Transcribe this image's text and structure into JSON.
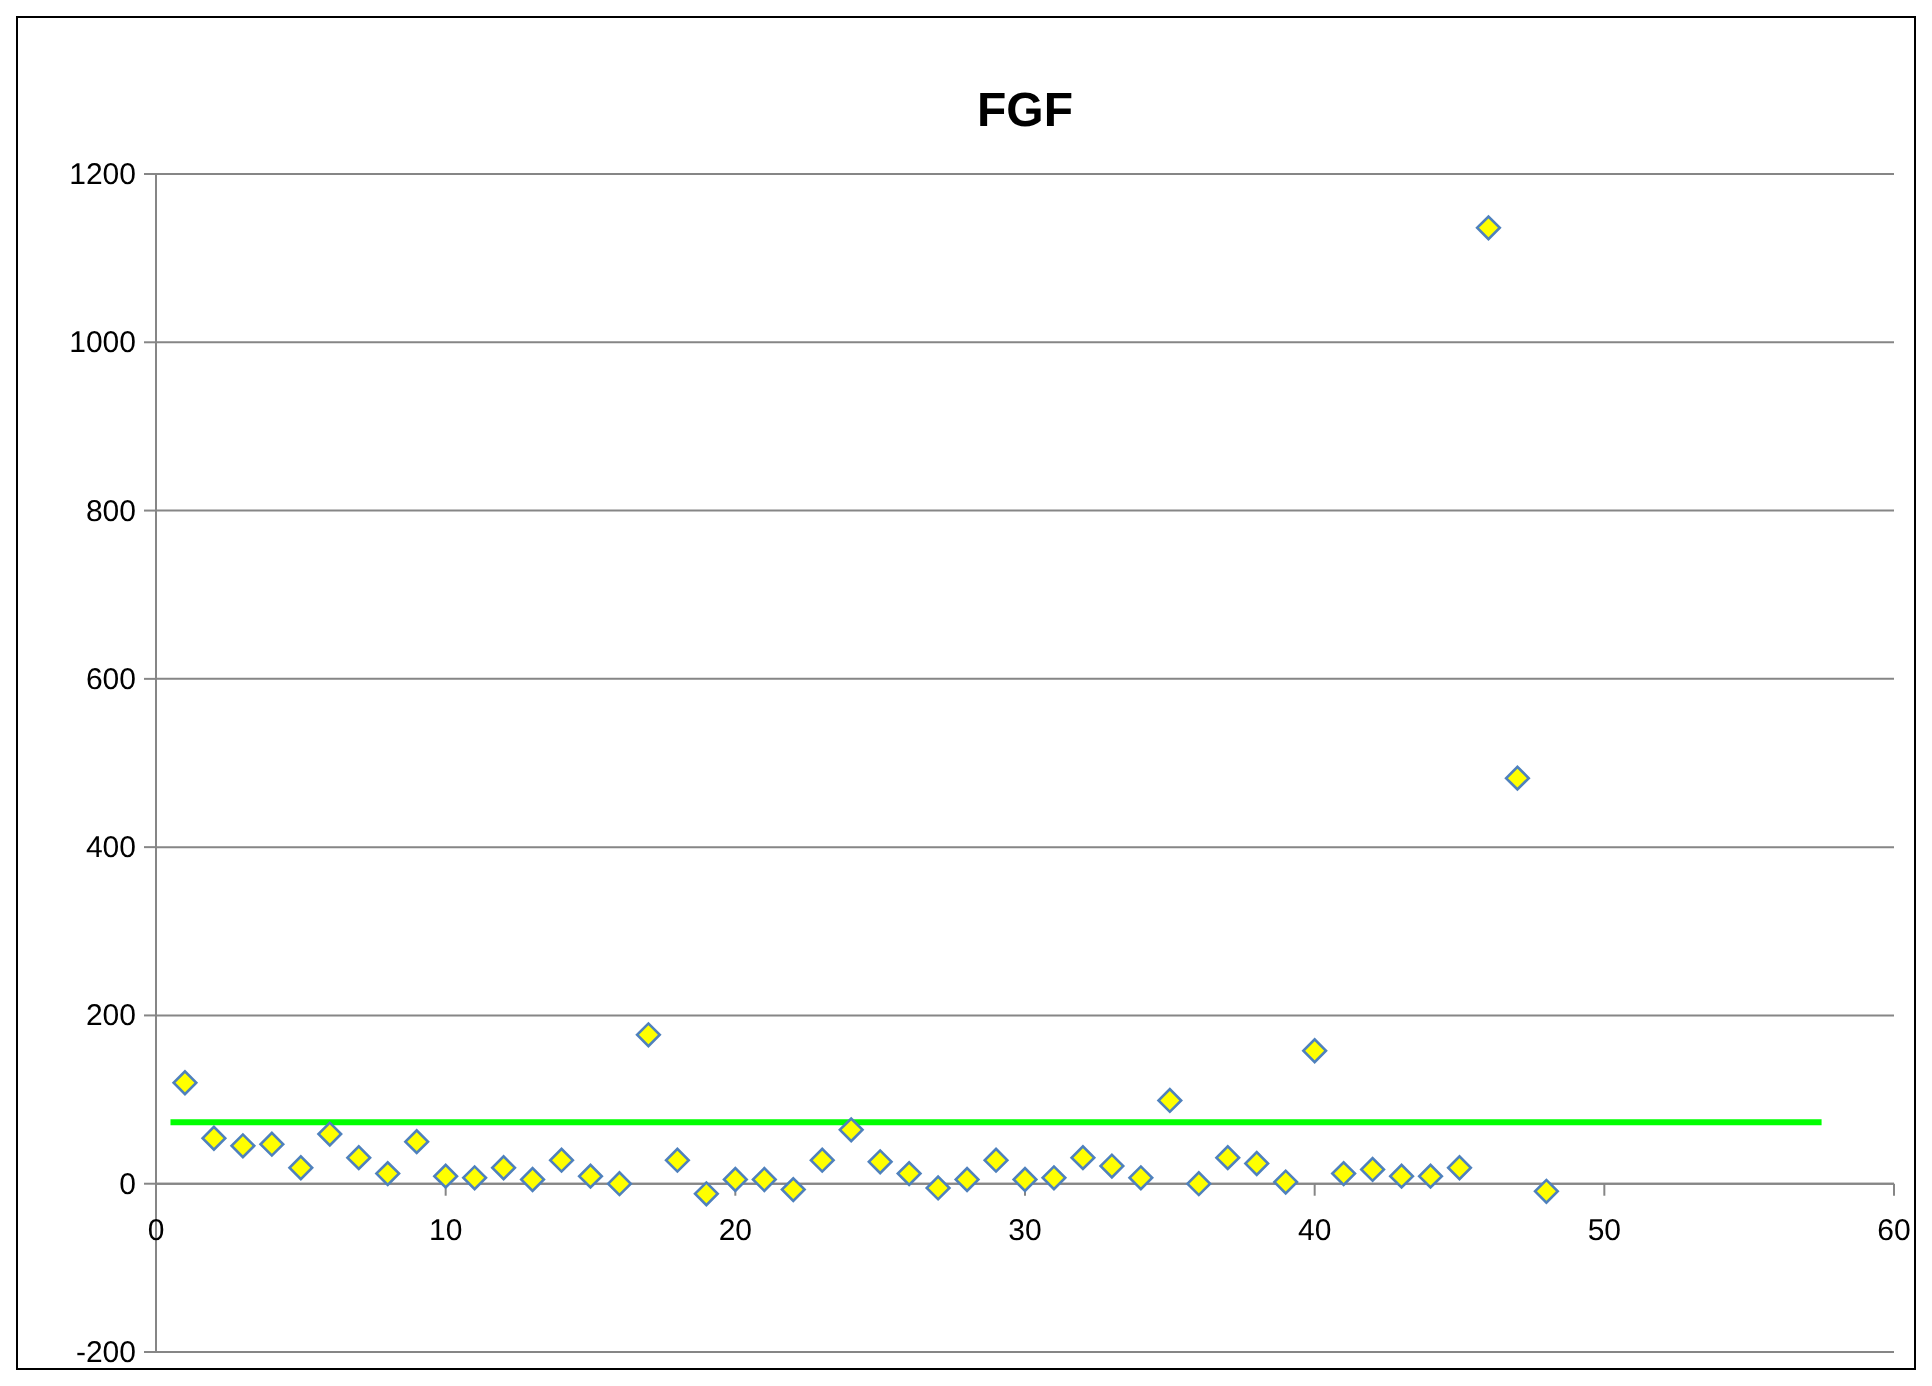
{
  "chart_data": {
    "type": "scatter",
    "title": "FGF",
    "xlim": [
      0,
      60
    ],
    "xticks": [
      0,
      10,
      20,
      30,
      40,
      50,
      60
    ],
    "ylim": [
      -200,
      1200
    ],
    "yticks": [
      -200,
      0,
      200,
      400,
      600,
      800,
      1000,
      1200
    ],
    "grid": "y",
    "series": [
      {
        "color": "#ffff00",
        "marker": "diamond",
        "x": [
          1,
          2,
          3,
          4,
          5,
          6,
          7,
          8,
          9,
          10,
          11,
          12,
          13,
          14,
          15,
          16,
          17,
          18,
          19,
          20,
          21,
          22,
          23,
          24,
          25,
          26,
          27,
          28,
          29,
          30,
          31,
          32,
          33,
          34,
          35,
          36,
          37,
          38,
          39,
          40,
          41,
          42,
          43,
          44,
          45,
          46,
          47,
          48
        ],
        "values": [
          120,
          54,
          45,
          47,
          19,
          59,
          31,
          12,
          50,
          9,
          7,
          19,
          5,
          28,
          9,
          0,
          177,
          28,
          -12,
          5,
          5,
          -7,
          28,
          64,
          26,
          12,
          -5,
          5,
          28,
          5,
          7,
          31,
          21,
          7,
          99,
          0,
          31,
          24,
          2,
          158,
          12,
          17,
          9,
          9,
          19,
          1136,
          482,
          -9
        ]
      },
      {
        "type": "line",
        "color": "#00ff00",
        "x": [
          0.5,
          57.5
        ],
        "values": [
          73,
          73
        ],
        "marker": "none"
      }
    ]
  }
}
